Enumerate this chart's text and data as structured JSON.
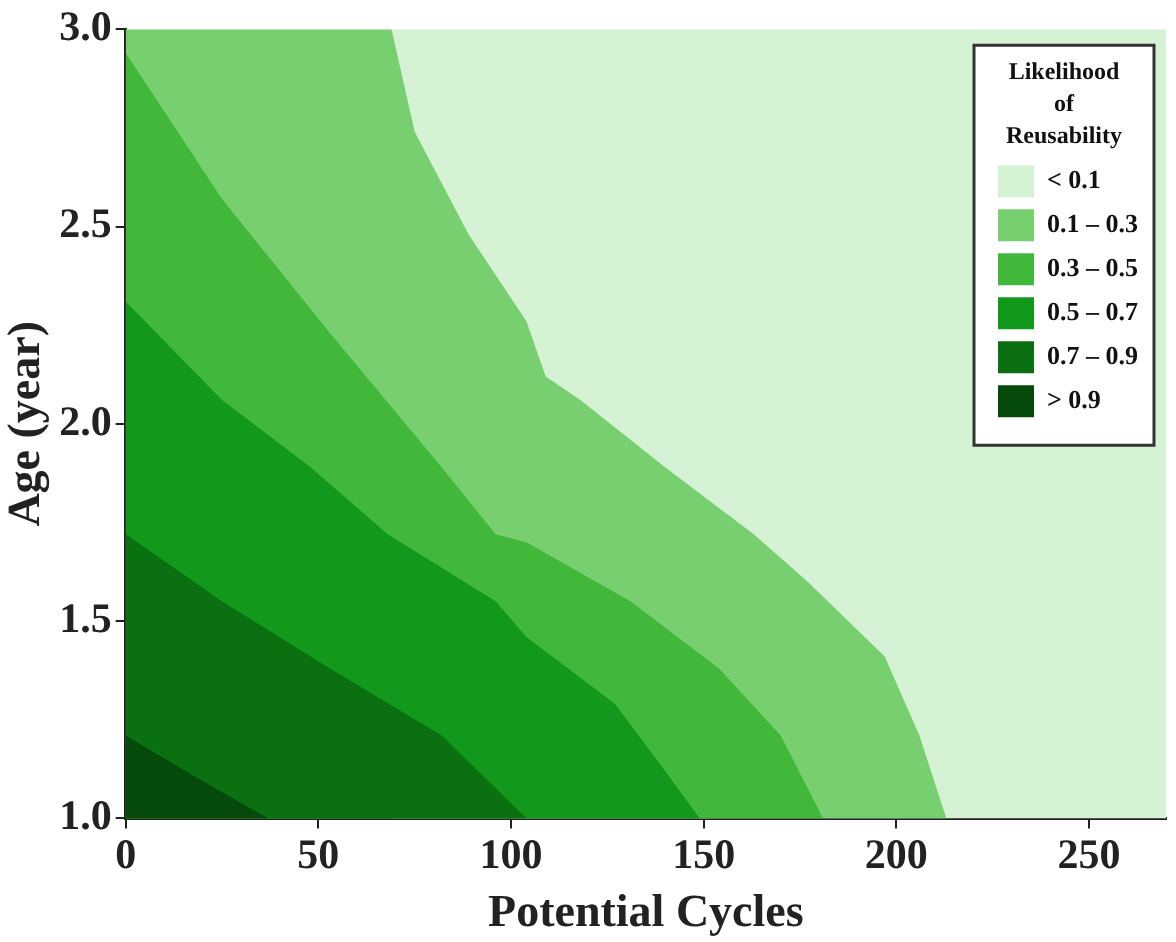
{
  "chart_data": {
    "type": "area",
    "xlabel": "Potential Cycles",
    "ylabel": "Age (year)",
    "legend_title": "Likelihood of Reusability",
    "legend": "top right",
    "grid": false,
    "xlim": [
      0,
      270
    ],
    "ylim": [
      1.0,
      3.0
    ],
    "xticks": [
      0,
      50,
      100,
      150,
      200,
      250
    ],
    "yticks": [
      {
        "value": 1.0,
        "label": "1.0"
      },
      {
        "value": 1.5,
        "label": "1.5"
      },
      {
        "value": 2.0,
        "label": "2.0"
      },
      {
        "value": 2.5,
        "label": "2.5"
      },
      {
        "value": 3.0,
        "label": "3.0"
      }
    ],
    "series": [
      {
        "name": "> 0.9",
        "color": "#054a0a",
        "x": [
          0,
          19,
          37
        ],
        "values": [
          1.21,
          1.1,
          1.0
        ]
      },
      {
        "name": "0.7 – 0.9",
        "color": "#0a7012",
        "x": [
          0,
          25,
          53,
          82,
          104
        ],
        "values": [
          1.72,
          1.55,
          1.38,
          1.21,
          1.0
        ]
      },
      {
        "name": "0.5 – 0.7",
        "color": "#12981a",
        "x": [
          0,
          25,
          48,
          68,
          96,
          104,
          127,
          140,
          149
        ],
        "values": [
          2.31,
          2.06,
          1.89,
          1.72,
          1.55,
          1.46,
          1.29,
          1.12,
          1.0
        ]
      },
      {
        "name": "0.3 – 0.5",
        "color": "#42b83a",
        "x": [
          0,
          25,
          53,
          82,
          96,
          104,
          131,
          154,
          170,
          181
        ],
        "values": [
          2.94,
          2.57,
          2.23,
          1.89,
          1.72,
          1.7,
          1.55,
          1.38,
          1.21,
          1.0
        ]
      },
      {
        "name": "0.1 – 0.3",
        "color": "#78cf6f",
        "x": [
          0,
          69,
          75,
          89,
          104,
          109,
          118,
          140,
          163,
          177,
          197,
          206,
          213
        ],
        "values": [
          3.0,
          3.0,
          2.74,
          2.48,
          2.26,
          2.12,
          2.06,
          1.89,
          1.72,
          1.6,
          1.41,
          1.21,
          1.0
        ]
      },
      {
        "name": "< 0.1",
        "color": "#d5f2d4",
        "x": [
          69,
          270
        ],
        "values": [
          3.0,
          3.0
        ]
      }
    ]
  }
}
